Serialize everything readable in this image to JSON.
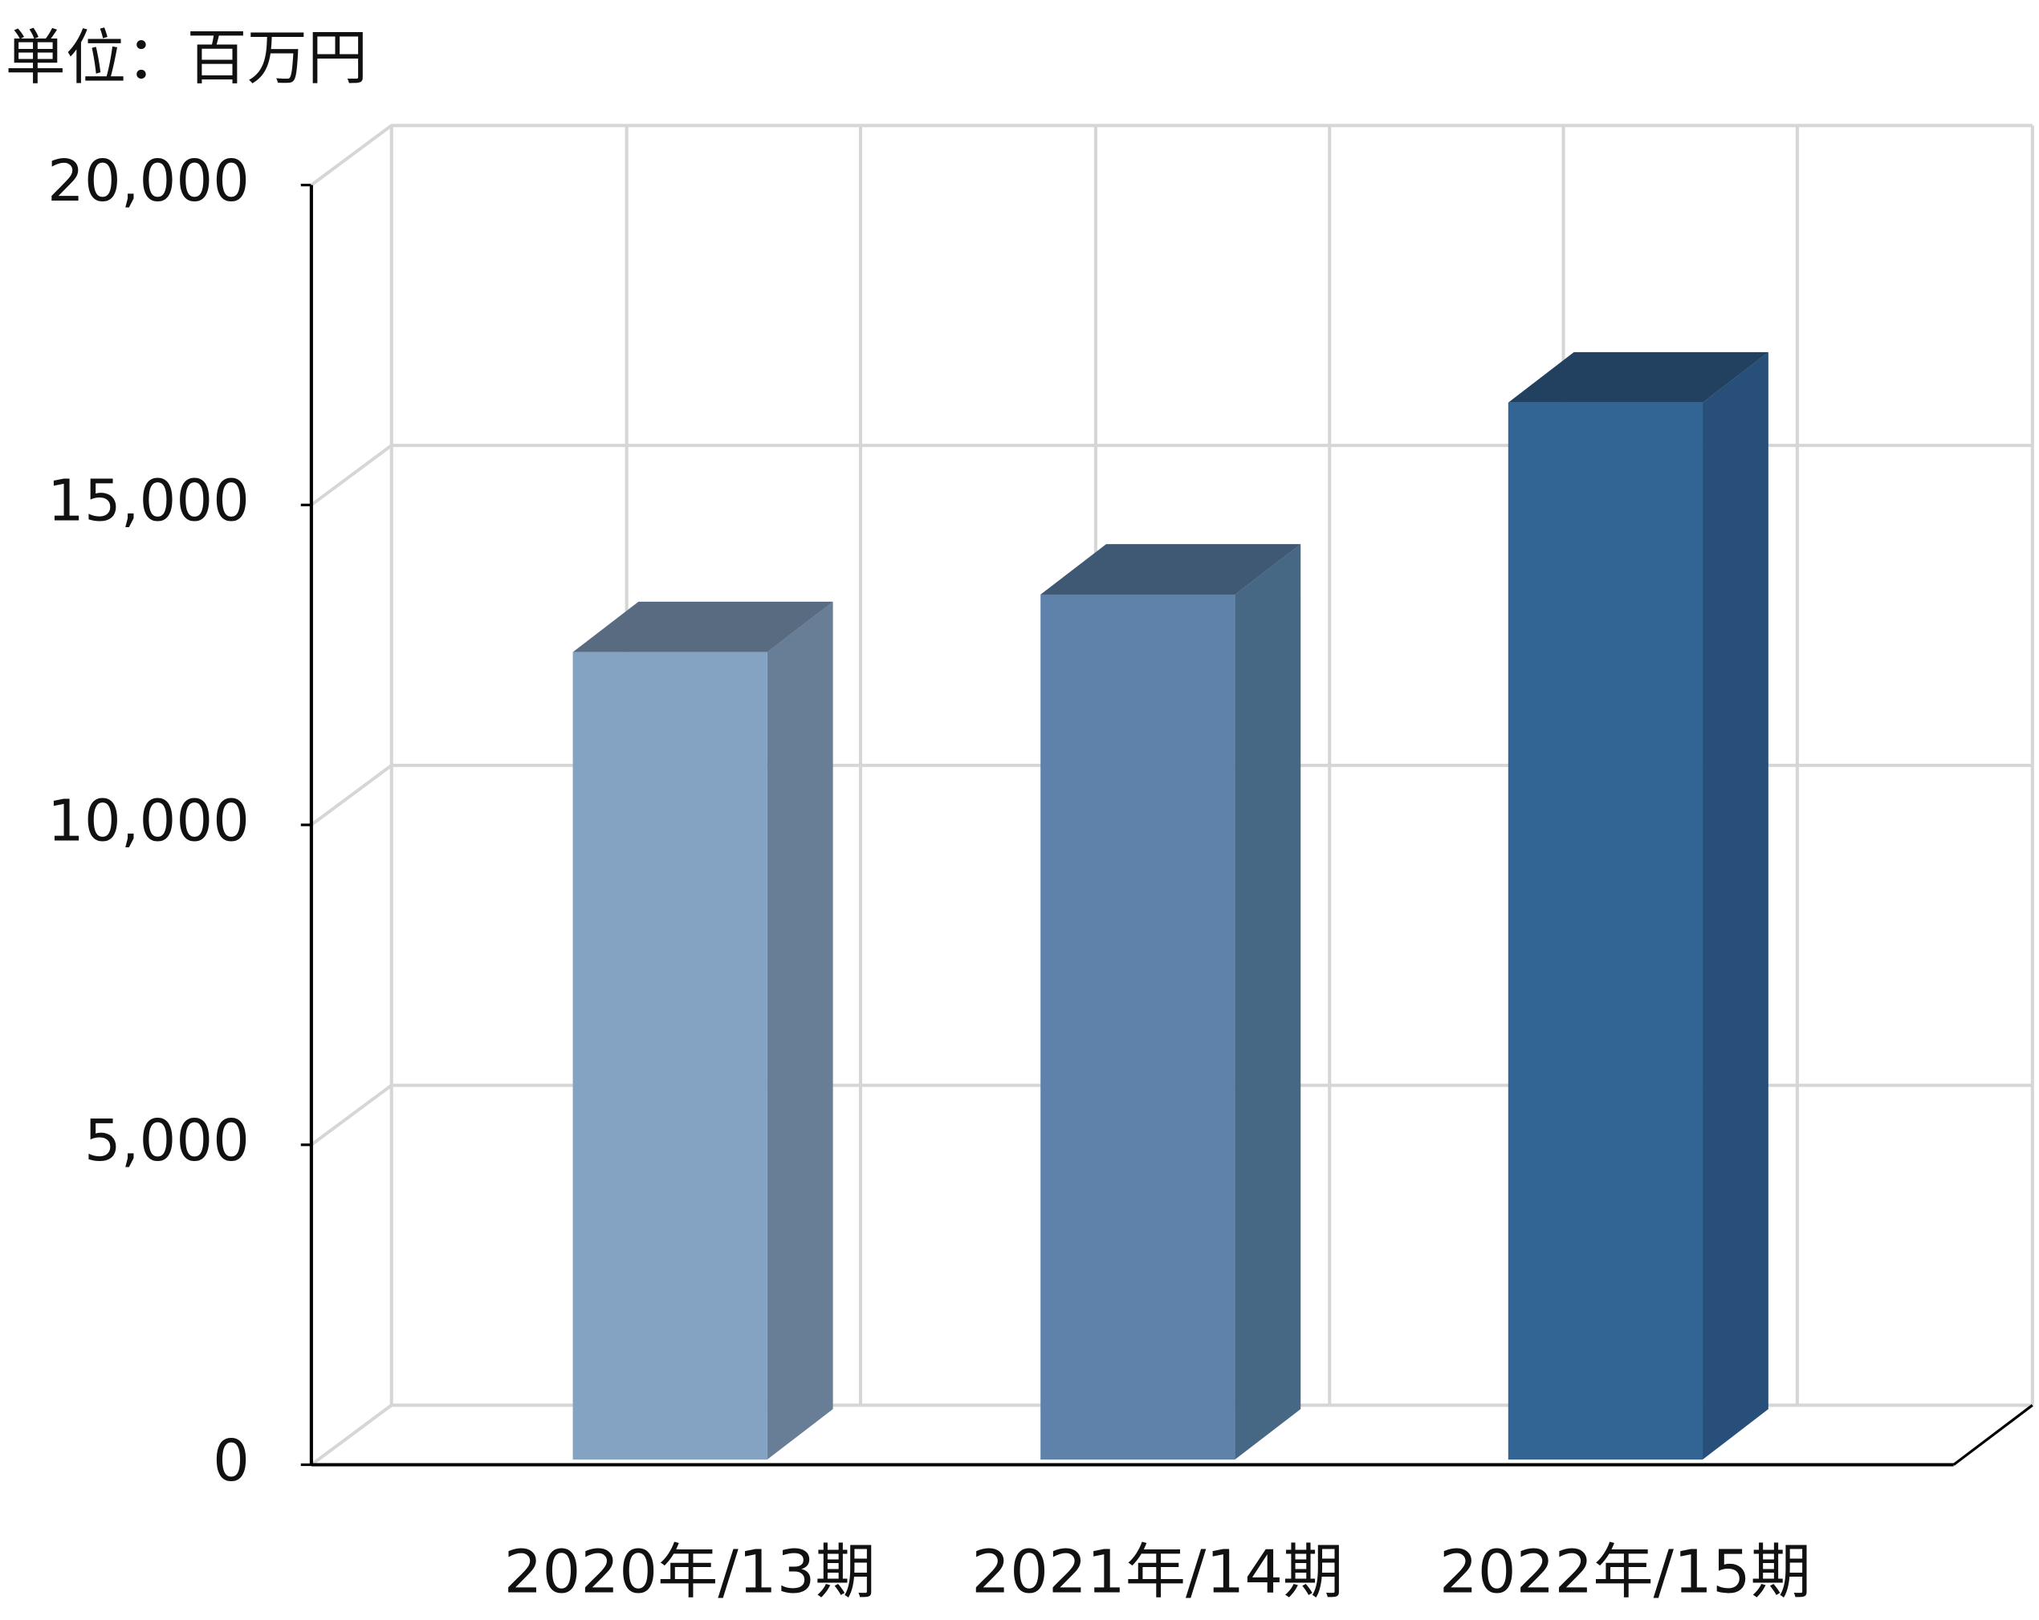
{
  "chart_data": {
    "type": "bar3d",
    "title": "単位：百万円",
    "categories": [
      "2020年/13期",
      "2021年/14期",
      "2022年/15期"
    ],
    "values": [
      12700,
      13600,
      16600
    ],
    "colors": [
      "#84a2c1",
      "#5e82aa",
      "#336594"
    ],
    "side_colors": [
      "#687e97",
      "#476884",
      "#284f79"
    ],
    "top_colors": [
      "#586b81",
      "#3f5873",
      "#22405f"
    ],
    "ylim": [
      0,
      20000
    ],
    "yticks": [
      0,
      {
        "value": 5000,
        "label": "5,000"
      },
      {
        "value": 10000,
        "label": "10,000"
      },
      {
        "value": 15000,
        "label": "15,000"
      },
      {
        "value": 20000,
        "label": "20,000"
      }
    ],
    "grid": true
  }
}
